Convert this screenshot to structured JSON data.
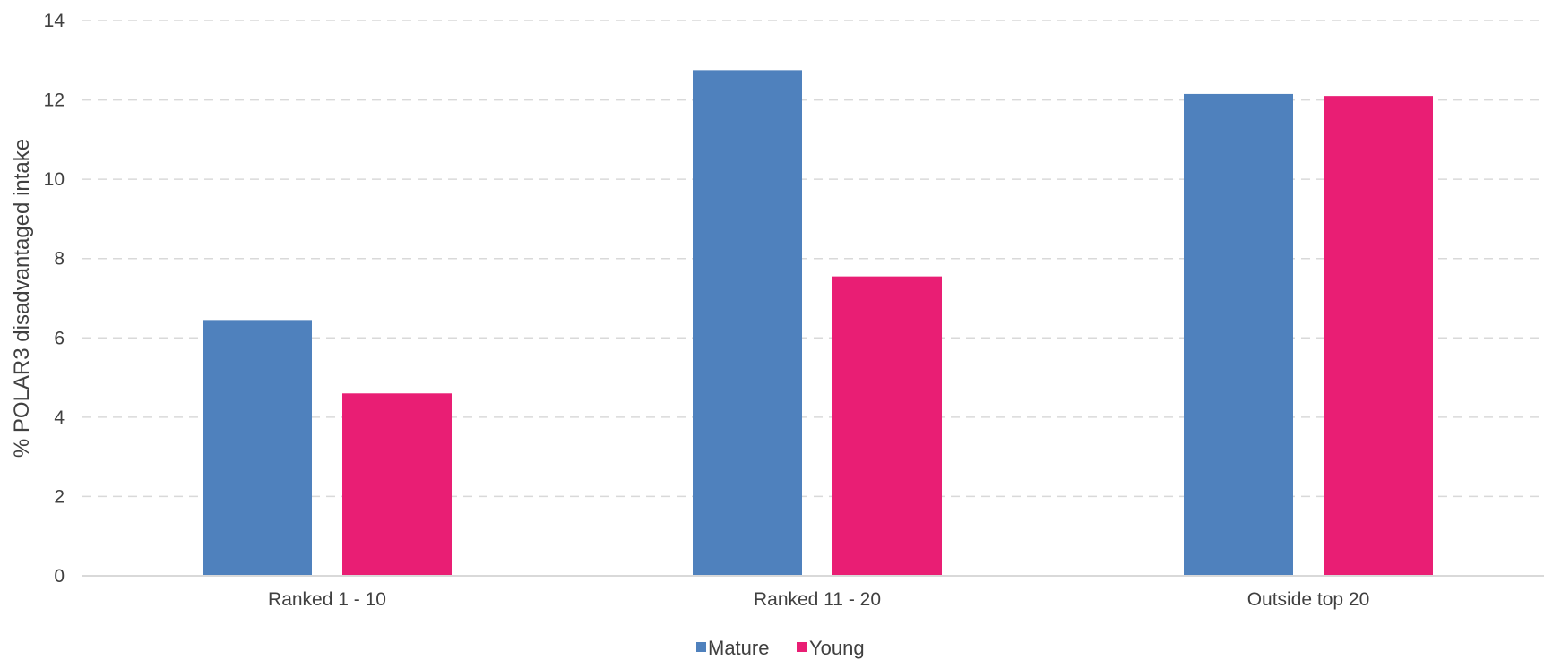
{
  "chart_data": {
    "type": "bar",
    "title": "",
    "xlabel": "",
    "ylabel": "% POLAR3 disadvantaged intake",
    "ylim": [
      0,
      14
    ],
    "yticks": [
      0,
      2,
      4,
      6,
      8,
      10,
      12,
      14
    ],
    "grid": true,
    "grid_style": "dashed",
    "legend_position": "bottom",
    "categories": [
      "Ranked 1 - 10",
      "Ranked 11 - 20",
      "Outside  top 20"
    ],
    "series": [
      {
        "name": "Mature",
        "color": "#4F81BD",
        "values": [
          6.45,
          12.75,
          12.15
        ]
      },
      {
        "name": "Young",
        "color": "#E91E74",
        "values": [
          4.6,
          7.55,
          12.1
        ]
      }
    ]
  }
}
